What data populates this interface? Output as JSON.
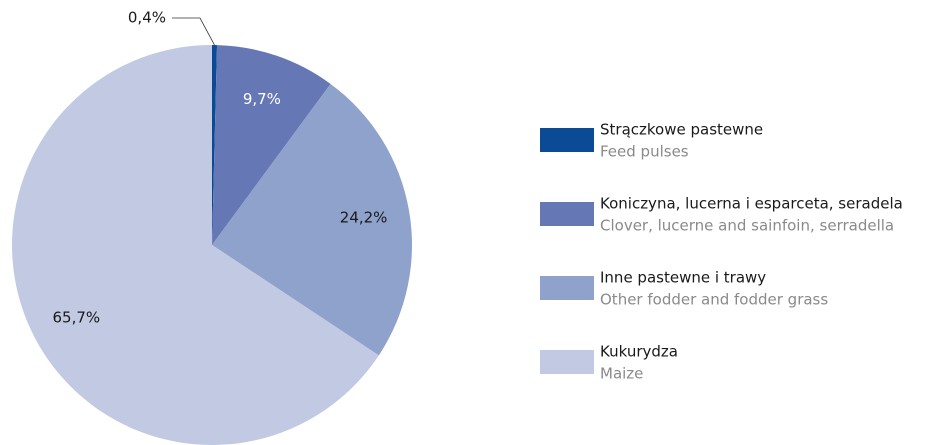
{
  "chart_data": {
    "type": "pie",
    "categories": [
      "Strączkowe pastewne",
      "Koniczyna, lucerna i esparceta, seradela",
      "Inne pastewne i trawy",
      "Kukurydza"
    ],
    "categories_en": [
      "Feed pulses",
      "Clover, lucerne and sainfoin, serradella",
      "Other fodder and fodder grass",
      "Maize"
    ],
    "values": [
      0.4,
      9.7,
      24.2,
      65.7
    ],
    "value_labels": [
      "0,4%",
      "9,7%",
      "24,2%",
      "65,7%"
    ],
    "colors": [
      "#0b4a94",
      "#6578b5",
      "#8fa2cc",
      "#c1c9e3"
    ]
  }
}
